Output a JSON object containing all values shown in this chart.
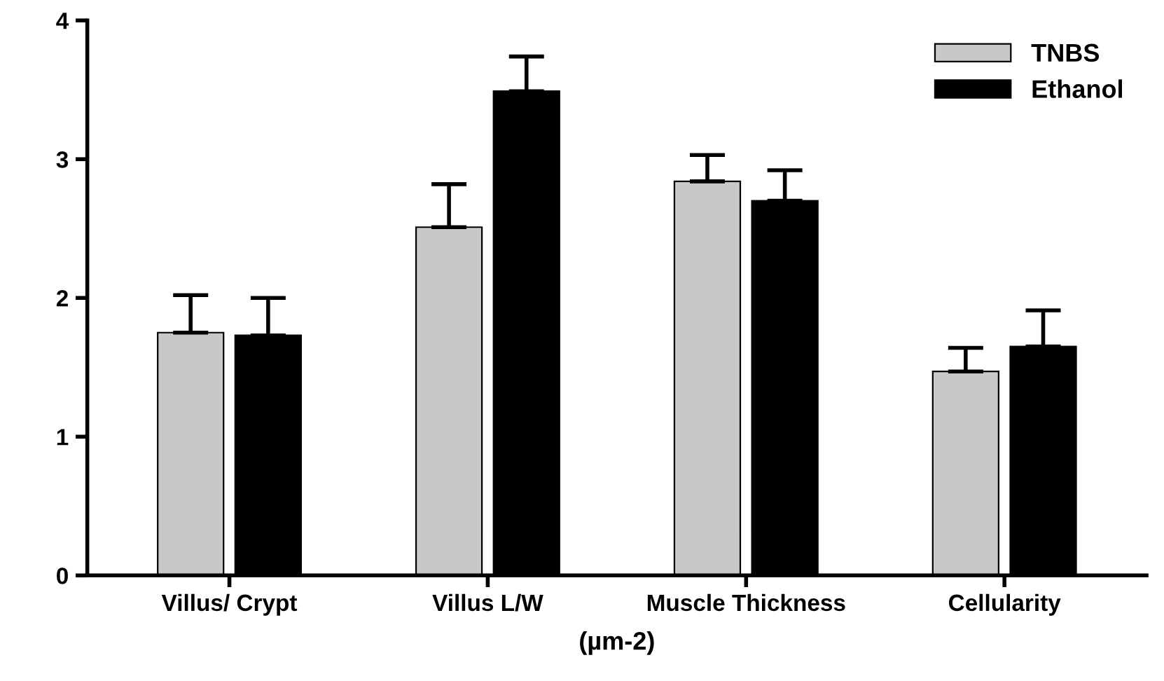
{
  "chart_data": {
    "type": "bar",
    "categories": [
      "Villus/ Crypt",
      "Villus L/W",
      "Muscle Thickness",
      "Cellularity"
    ],
    "xlabel": "(µm-2)",
    "series": [
      {
        "name": "TNBS",
        "color": "#c8c8c8",
        "values": [
          1.75,
          2.51,
          2.84,
          1.47
        ],
        "errors": [
          [
            1.75,
            2.02
          ],
          [
            2.51,
            2.82
          ],
          [
            2.84,
            3.03
          ],
          [
            1.47,
            1.64
          ]
        ]
      },
      {
        "name": "Ethanol",
        "color": "#000000",
        "values": [
          1.73,
          3.49,
          2.7,
          1.65
        ],
        "errors": [
          [
            1.73,
            2.0
          ],
          [
            3.49,
            3.74
          ],
          [
            2.7,
            2.92
          ],
          [
            1.65,
            1.91
          ]
        ]
      }
    ],
    "ylim": [
      0,
      4
    ],
    "yticks": [
      0,
      1,
      2,
      3,
      4
    ],
    "grid": false,
    "legend": "top right"
  }
}
